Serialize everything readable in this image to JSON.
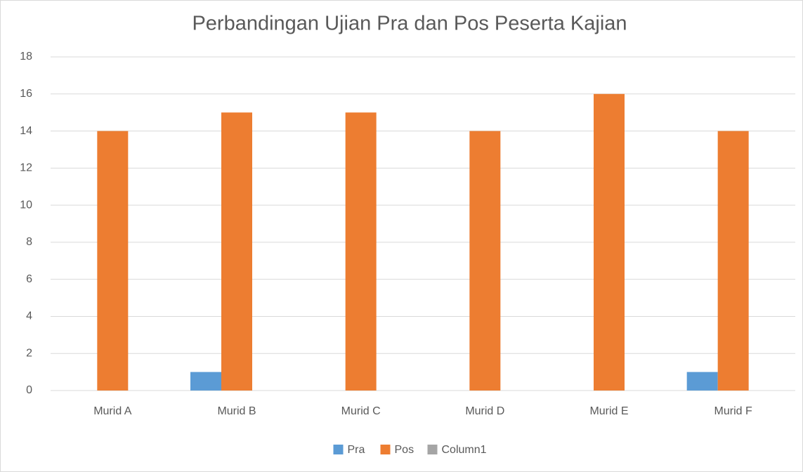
{
  "chart_data": {
    "type": "bar",
    "title": "Perbandingan Ujian Pra dan Pos Peserta Kajian",
    "categories": [
      "Murid A",
      "Murid B",
      "Murid C",
      "Murid D",
      "Murid E",
      "Murid F"
    ],
    "series": [
      {
        "name": "Pra",
        "color": "#5b9bd5",
        "values": [
          0,
          1,
          0,
          0,
          0,
          1
        ]
      },
      {
        "name": "Pos",
        "color": "#ed7d31",
        "values": [
          14,
          15,
          15,
          14,
          16,
          14
        ]
      },
      {
        "name": "Column1",
        "color": "#a5a5a5",
        "values": [
          null,
          null,
          null,
          null,
          null,
          null
        ]
      }
    ],
    "ylim": [
      0,
      18
    ],
    "yticks": [
      0,
      2,
      4,
      6,
      8,
      10,
      12,
      14,
      16,
      18
    ],
    "grid": true,
    "legend": "bottom"
  }
}
